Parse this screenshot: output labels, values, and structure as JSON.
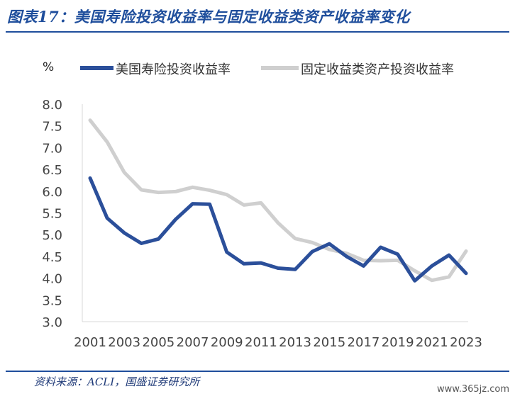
{
  "header": {
    "title": "图表17：美国寿险投资收益率与固定收益类资产收益率变化"
  },
  "footer": {
    "source": "资料来源：ACLI，国盛证券研究所",
    "watermark": "www.365jz.com"
  },
  "colors": {
    "accent": "#1f4e9c",
    "series1": "#2b4f9a",
    "series2": "#cfcfcf"
  },
  "chart_data": {
    "type": "line",
    "unit_label": "%",
    "x": [
      2001,
      2002,
      2003,
      2004,
      2005,
      2006,
      2007,
      2008,
      2009,
      2010,
      2011,
      2012,
      2013,
      2014,
      2015,
      2016,
      2017,
      2018,
      2019,
      2020,
      2021,
      2022,
      2023
    ],
    "x_tick_labels": [
      "2001",
      "2003",
      "2005",
      "2007",
      "2009",
      "2011",
      "2013",
      "2015",
      "2017",
      "2019",
      "2021",
      "2023"
    ],
    "y_ticks": [
      "3.0",
      "3.5",
      "4.0",
      "4.5",
      "5.0",
      "5.5",
      "6.0",
      "6.5",
      "7.0",
      "7.5",
      "8.0"
    ],
    "ylim": [
      3.0,
      8.0
    ],
    "legend_position": "top",
    "grid": false,
    "series": [
      {
        "name": "美国寿险投资收益率",
        "color": "#2b4f9a",
        "values": [
          6.3,
          5.38,
          5.04,
          4.8,
          4.9,
          5.35,
          5.71,
          5.7,
          4.6,
          4.33,
          4.35,
          4.23,
          4.2,
          4.61,
          4.79,
          4.5,
          4.28,
          4.71,
          4.55,
          3.94,
          4.28,
          4.53,
          4.11
        ]
      },
      {
        "name": "固定收益类资产投资收益率",
        "color": "#cfcfcf",
        "values": [
          7.63,
          7.13,
          6.43,
          6.03,
          5.97,
          5.99,
          6.09,
          6.02,
          5.92,
          5.68,
          5.73,
          5.27,
          4.91,
          4.82,
          4.66,
          4.57,
          4.41,
          4.4,
          4.41,
          4.17,
          3.95,
          4.03,
          4.62
        ]
      }
    ]
  }
}
